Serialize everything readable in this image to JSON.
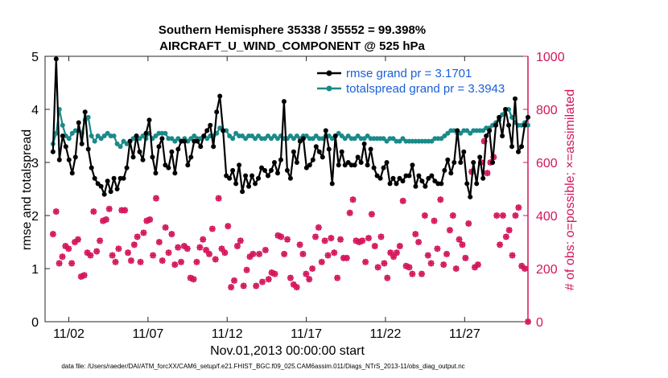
{
  "chart_data": {
    "type": "line",
    "title": "Southern Hemisphere 35338 / 35552 = 99.398%",
    "subtitle": "AIRCRAFT_U_WIND_COMPONENT @ 525 hPa",
    "xlabel": "Nov.01,2013 00:00:00 start",
    "ylabel": "rmse and totalspread",
    "y2label": "# of obs: o=possible; ×=assimilated",
    "footer": "data file: /Users/raeder/DAI/ATM_forcXX/CAM6_setup/f.e21.FHIST_BGC.f09_025.CAM6assim.011/Diags_NTrS_2013-11/obs_diag_output.nc",
    "xlim": [
      0.5,
      31.0
    ],
    "ylim": [
      0,
      5
    ],
    "y2lim": [
      0,
      1000
    ],
    "xticks": [
      {
        "day": 2,
        "label": "11/02"
      },
      {
        "day": 7,
        "label": "11/07"
      },
      {
        "day": 12,
        "label": "11/12"
      },
      {
        "day": 17,
        "label": "11/17"
      },
      {
        "day": 22,
        "label": "11/22"
      },
      {
        "day": 27,
        "label": "11/27"
      }
    ],
    "yticks": [
      "0",
      "1",
      "2",
      "3",
      "4",
      "5"
    ],
    "y2ticks": [
      "0",
      "200",
      "400",
      "600",
      "800",
      "1000"
    ],
    "colors": {
      "rmse": "#000000",
      "spread": "#1a8a8a",
      "obs": "#d4155b",
      "legend_text": "#1a5fd8"
    },
    "legend_position": "top-right",
    "series": [
      {
        "name": "rmse grand pr = 3.1701",
        "values": [
          3.2,
          4.95,
          3.05,
          3.5,
          3.3,
          3.05,
          2.8,
          3.1,
          3.75,
          3.35,
          3.95,
          3.25,
          2.9,
          2.7,
          2.6,
          2.55,
          2.4,
          2.65,
          2.45,
          2.7,
          2.5,
          2.7,
          2.7,
          2.9,
          3.4,
          3.1,
          3.5,
          3.2,
          3.05,
          3.55,
          3.8,
          3.1,
          2.8,
          3.3,
          3.45,
          2.95,
          2.9,
          3.2,
          2.8,
          3.25,
          3.4,
          3.4,
          2.95,
          3.1,
          3.4,
          3.4,
          3.3,
          3.5,
          3.6,
          3.7,
          3.3,
          3.95,
          4.25,
          3.6,
          2.75,
          2.7,
          2.85,
          2.6,
          2.95,
          2.45,
          2.75,
          2.55,
          2.75,
          2.6,
          2.7,
          2.9,
          2.85,
          2.75,
          2.85,
          3.0,
          2.8,
          3.05,
          4.15,
          2.85,
          2.7,
          3.2,
          3.0,
          3.4,
          3.45,
          2.9,
          2.95,
          3.05,
          3.3,
          3.2,
          3.1,
          3.6,
          3.25,
          2.6,
          3.5,
          2.95,
          3.2,
          2.95,
          3.0,
          2.95,
          2.95,
          3.1,
          3.0,
          3.35,
          2.95,
          3.25,
          2.9,
          2.75,
          2.7,
          2.9,
          3.0,
          2.6,
          2.7,
          2.6,
          2.7,
          2.65,
          2.75,
          2.75,
          2.95,
          2.55,
          2.75,
          2.65,
          2.55,
          2.7,
          2.75,
          2.65,
          2.6,
          2.6,
          2.85,
          3.05,
          2.8,
          3.0,
          3.6,
          3.0,
          3.2,
          2.6,
          2.35,
          3.0,
          2.6,
          3.1,
          2.7,
          3.5,
          3.6,
          3.0,
          3.7,
          3.85,
          3.5,
          4.0,
          3.7,
          3.3,
          4.2,
          3.2,
          3.3,
          3.7,
          3.85
        ]
      },
      {
        "name": "totalspread grand pr = 3.3943",
        "values": [
          3.35,
          3.55,
          4.0,
          3.7,
          3.5,
          3.45,
          3.55,
          3.6,
          3.6,
          3.55,
          3.8,
          3.85,
          3.5,
          3.4,
          3.5,
          3.45,
          3.5,
          3.55,
          3.5,
          3.5,
          3.35,
          3.3,
          3.4,
          3.35,
          3.4,
          3.45,
          3.5,
          3.45,
          3.5,
          3.45,
          3.55,
          3.45,
          3.5,
          3.55,
          3.55,
          3.55,
          3.45,
          3.45,
          3.4,
          3.45,
          3.4,
          3.45,
          3.4,
          3.45,
          3.5,
          3.45,
          3.45,
          3.5,
          3.45,
          3.5,
          3.5,
          3.55,
          3.65,
          3.6,
          3.6,
          3.5,
          3.45,
          3.55,
          3.5,
          3.5,
          3.45,
          3.5,
          3.5,
          3.45,
          3.5,
          3.45,
          3.45,
          3.5,
          3.45,
          3.5,
          3.45,
          3.5,
          3.45,
          3.45,
          3.5,
          3.45,
          3.5,
          3.45,
          3.5,
          3.5,
          3.45,
          3.45,
          3.5,
          3.45,
          3.45,
          3.5,
          3.5,
          3.45,
          3.5,
          3.55,
          3.5,
          3.45,
          3.5,
          3.45,
          3.45,
          3.5,
          3.45,
          3.45,
          3.5,
          3.45,
          3.45,
          3.45,
          3.45,
          3.45,
          3.4,
          3.45,
          3.45,
          3.4,
          3.4,
          3.45,
          3.4,
          3.4,
          3.4,
          3.4,
          3.4,
          3.4,
          3.4,
          3.4,
          3.4,
          3.45,
          3.45,
          3.45,
          3.5,
          3.55,
          3.6,
          3.6,
          3.55,
          3.55,
          3.6,
          3.6,
          3.55,
          3.6,
          3.6,
          3.6,
          3.6,
          3.65,
          3.65,
          3.7,
          3.75,
          3.8,
          3.9,
          4.0,
          4.0,
          3.85,
          3.75,
          3.7,
          3.7,
          3.75,
          3.7
        ]
      }
    ],
    "obs_possible": [
      330,
      415,
      220,
      245,
      285,
      275,
      220,
      300,
      310,
      170,
      175,
      260,
      250,
      415,
      265,
      305,
      380,
      385,
      425,
      250,
      225,
      275,
      420,
      420,
      260,
      230,
      290,
      320,
      225,
      335,
      380,
      385,
      250,
      465,
      300,
      230,
      355,
      260,
      330,
      215,
      280,
      225,
      285,
      275,
      165,
      160,
      225,
      280,
      310,
      270,
      255,
      350,
      235,
      465,
      275,
      260,
      360,
      130,
      155,
      285,
      305,
      135,
      195,
      245,
      255,
      135,
      255,
      150,
      270,
      160,
      185,
      180,
      325,
      320,
      255,
      310,
      165,
      140,
      130,
      290,
      255,
      180,
      160,
      200,
      320,
      355,
      225,
      305,
      250,
      315,
      260,
      165,
      310,
      240,
      240,
      410,
      460,
      305,
      300,
      305,
      225,
      315,
      405,
      285,
      205,
      320,
      220,
      165,
      260,
      245,
      260,
      285,
      455,
      210,
      205,
      180,
      330,
      300,
      180,
      400,
      250,
      220,
      380,
      275,
      460,
      215,
      255,
      345,
      400,
      200,
      310,
      290,
      240,
      370,
      565,
      205,
      215,
      600,
      680,
      560,
      600,
      620,
      400,
      290,
      400,
      320,
      345,
      250,
      400,
      430,
      210,
      200,
      0
    ]
  }
}
